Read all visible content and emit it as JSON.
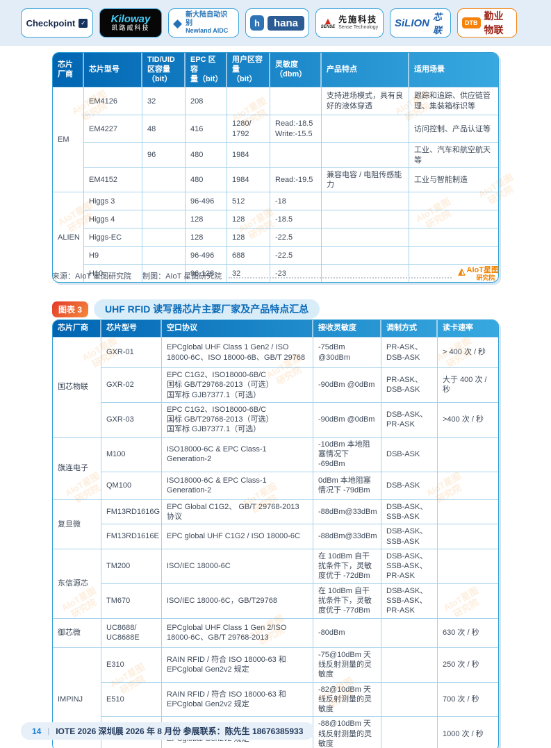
{
  "header_logos": [
    {
      "name": "checkpoint",
      "text": "Checkpoint"
    },
    {
      "name": "kiloway",
      "line1": "Kiloway",
      "line2": "凯路威科技"
    },
    {
      "name": "newland",
      "line1": "新大陆自动识别",
      "line2": "Newland AIDC"
    },
    {
      "name": "hana",
      "icon_letter": "h",
      "text": "hana"
    },
    {
      "name": "sense",
      "icon_word": "SENSE",
      "cn": "先施科技",
      "en": "Sense Technology"
    },
    {
      "name": "silion",
      "en": "SiLION",
      "cn": "芯联"
    },
    {
      "name": "dtb",
      "abbr": "DTB",
      "cn": "勤业物联"
    }
  ],
  "table1": {
    "columns": [
      "芯片厂商",
      "芯片型号",
      "TID/UID\n区容量\n（bit）",
      "EPC 区容\n量（bit）",
      "用户区容量\n（bit）",
      "灵敏度\n（dbm）",
      "产品特点",
      "适用场景"
    ],
    "rows": [
      [
        {
          "t": "EM",
          "rs": 4
        },
        "EM4126",
        "32",
        "208",
        "",
        "",
        "支持进场模式，具有良好的液体穿透",
        "跟踪和追踪、供应链管理、集装箱标识等"
      ],
      [
        "EM4227",
        "48",
        "416",
        "1280/\n1792",
        "Read:-18.5\nWrite:-15.5",
        "",
        "访问控制、产品认证等"
      ],
      [
        "",
        "96",
        "480",
        "1984",
        "",
        "",
        "工业、汽车和航空航天等"
      ],
      [
        "EM4152",
        "",
        "480",
        "1984",
        "Read:-19.5",
        "兼容电容 / 电阻传感能力",
        "工业与智能制造"
      ],
      [
        {
          "t": "ALIEN",
          "rs": 5
        },
        "Higgs 3",
        "",
        "96-496",
        "512",
        "-18",
        "",
        ""
      ],
      [
        "Higgs 4",
        "",
        "128",
        "128",
        "-18.5",
        "",
        ""
      ],
      [
        "Higgs-EC",
        "",
        "128",
        "128",
        "-22.5",
        "",
        ""
      ],
      [
        "H9",
        "",
        "96-496",
        "688",
        "-22.5",
        "",
        ""
      ],
      [
        "H10",
        "",
        "96-128",
        "32",
        "-23",
        "",
        ""
      ]
    ]
  },
  "source_note": {
    "source": "来源：AIoT 星图研究院",
    "maker": "制图：AIoT 星图研究院",
    "logo_line1": "AIoT星图",
    "logo_line2": "研究院"
  },
  "figure3": {
    "badge": "图表 3",
    "title": "UHF RFID 读写器芯片主要厂家及产品特点汇总"
  },
  "table2": {
    "columns": [
      "芯片厂商",
      "芯片型号",
      "空口协议",
      "接收灵敏度",
      "调制方式",
      "读卡速率"
    ],
    "rows": [
      [
        {
          "t": "国芯物联",
          "rs": 3
        },
        "GXR-01",
        "EPCglobal UHF Class 1 Gen2 / ISO 18000-6C、ISO 18000-6B、GB/T 29768",
        "-75dBm @30dBm",
        "PR-ASK、DSB-ASK",
        "> 400 次 / 秒"
      ],
      [
        "GXR-02",
        "EPC C1G2、ISO18000-6B/C\n国标 GB/T29768-2013（可选）\n国军标 GJB7377.1（可选）",
        "-90dBm @0dBm",
        "PR-ASK、DSB-ASK",
        "大于 400 次 / 秒"
      ],
      [
        "GXR-03",
        "EPC C1G2、ISO18000-6B/C\n国标 GB/T29768-2013（可选）\n国军标 GJB7377.1（可选）",
        "-90dBm @0dBm",
        "DSB-ASK、PR-ASK",
        ">400 次 / 秒"
      ],
      [
        {
          "t": "旗连电子",
          "rs": 2
        },
        "M100",
        "ISO18000-6C & EPC Class-1 Generation-2",
        "-10dBm 本地阻塞情况下 -69dBm",
        "DSB-ASK",
        ""
      ],
      [
        "QM100",
        "ISO18000-6C & EPC Class-1 Generation-2",
        "0dBm 本地阻塞情况下 -79dBm",
        "DSB-ASK",
        ""
      ],
      [
        {
          "t": "复旦微",
          "rs": 2
        },
        "FM13RD1616G",
        "EPC Global C1G2、 GB/T 29768-2013 协议",
        "-88dBm@33dBm",
        "DSB-ASK、SSB-ASK",
        ""
      ],
      [
        "FM13RD1616E",
        "EPC global UHF C1G2 / ISO 18000-6C",
        "-88dBm@33dBm",
        "DSB-ASK、SSB-ASK",
        ""
      ],
      [
        {
          "t": "东信源芯",
          "rs": 2
        },
        "TM200",
        "ISO/IEC 18000-6C",
        "在 10dBm 自干扰条件下，灵敏度优于 -72dBm",
        "DSB-ASK、SSB-ASK、PR-ASK",
        ""
      ],
      [
        "TM670",
        "ISO/IEC 18000-6C，GB/T29768",
        "在 10dBm 自干扰条件下，灵敏度优于 -77dBm",
        "DSB-ASK、SSB-ASK、PR-ASK",
        ""
      ],
      [
        {
          "t": "御芯微",
          "rs": 1
        },
        "UC8688/\nUC8688E",
        "EPCglobal UHF Class 1 Gen 2/ISO 18000-6C、GB/T 29768-2013",
        "-80dBm",
        "",
        "630 次 / 秒"
      ],
      [
        {
          "t": "IMPINJ",
          "rs": 3
        },
        "E310",
        "RAIN RFID / 符合 ISO 18000-63 和 EPCglobal Gen2v2 规定",
        "-75@10dBm 天线反射测量的灵敏度",
        "",
        "250 次 / 秒"
      ],
      [
        "E510",
        "RAIN RFID / 符合 ISO 18000-63 和 EPCglobal Gen2v2 规定",
        "-82@10dBm 天线反射测量的灵敏度",
        "",
        "700 次 / 秒"
      ],
      [
        "E710",
        "RAIN RFID / 符合 ISO 18000-63 和 EPCglobal Gen2v2 规定",
        "-88@10dBm 天线反射测量的灵敏度",
        "",
        "1000 次 / 秒"
      ]
    ]
  },
  "footer": {
    "page_number": "14",
    "divider": "|",
    "text": "IOTE 2026 深圳展 2026 年 8 月份  参展联系：陈先生 18676385933"
  },
  "watermark": {
    "text": "AIoT星图\n研究院"
  },
  "colors": {
    "accent_blue": "#0065b2",
    "light_blue": "#38a9e0",
    "grid_blue": "#a6d2ec",
    "orange": "#f08300"
  }
}
